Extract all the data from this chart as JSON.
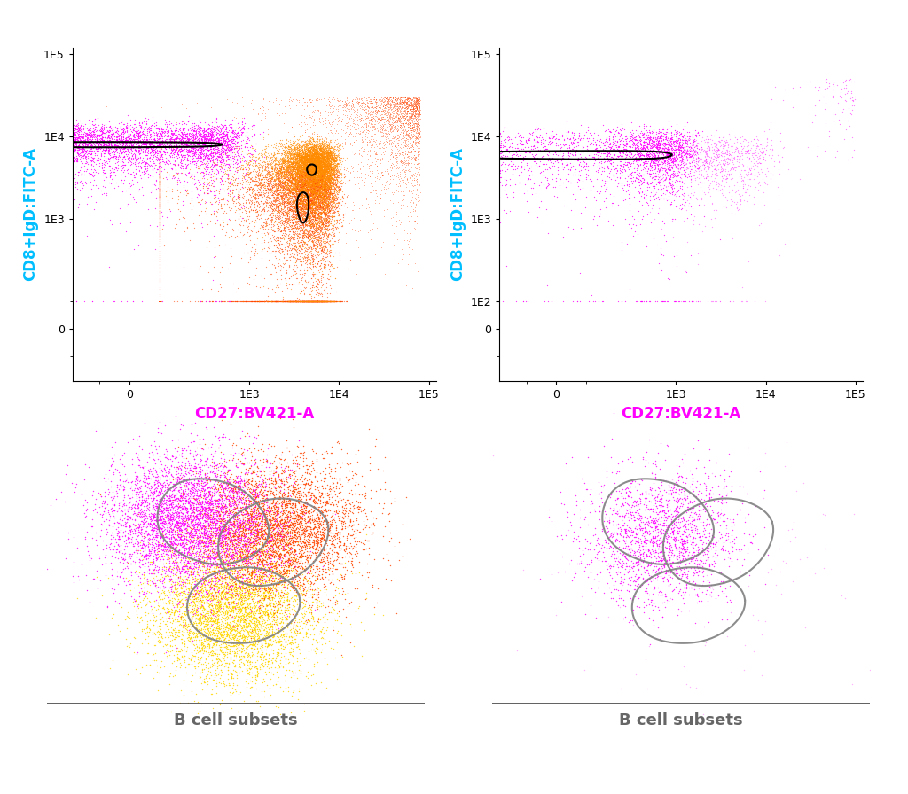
{
  "bg_color": "#ffffff",
  "scatter_colors": {
    "magenta": "#FF00FF",
    "orange": "#FF8C00",
    "red_orange": "#FF4500",
    "yellow": "#FFD700"
  },
  "xlabel": "CD27:BV421-A",
  "ylabel": "CD8+IgD:FITC-A",
  "xlabel_color": "#FF00FF",
  "ylabel_color": "#00BFFF",
  "label_fontsize": 12,
  "tick_fontsize": 9,
  "bcell_label": "B cell subsets",
  "bcell_label_color": "#666666",
  "bcell_label_fontsize": 13
}
